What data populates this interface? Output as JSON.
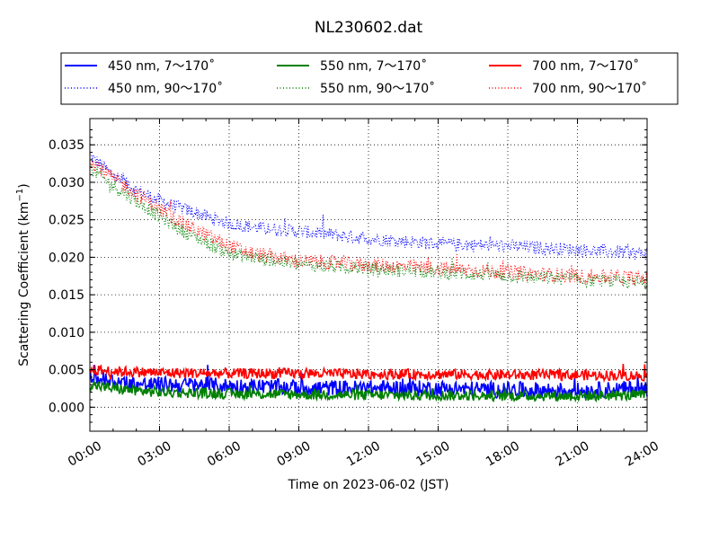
{
  "chart_data": {
    "type": "line",
    "title": "NL230602.dat",
    "xlabel": "Time on 2023-06-02 (JST)",
    "ylabel_main": "Scattering Coefficient (km",
    "ylabel_exp": "−1",
    "ylabel_close": ")",
    "x_tick_labels": [
      "00:00",
      "03:00",
      "06:00",
      "09:00",
      "12:00",
      "15:00",
      "18:00",
      "21:00",
      "24:00"
    ],
    "x_ticks_hours": [
      0,
      3,
      6,
      9,
      12,
      15,
      18,
      21,
      24
    ],
    "xlim_hours": [
      0,
      24
    ],
    "y_ticks": [
      0.0,
      0.005,
      0.01,
      0.015,
      0.02,
      0.025,
      0.03,
      0.035
    ],
    "y_tick_labels": [
      "0.000",
      "0.005",
      "0.010",
      "0.015",
      "0.020",
      "0.025",
      "0.030",
      "0.035"
    ],
    "ylim": [
      -0.0032,
      0.0385
    ],
    "grid": true,
    "legend_position": "top, above plot, 3 columns",
    "series": [
      {
        "name": "450 nm, 7～170˚",
        "color": "#0000ff",
        "style": "solid",
        "hours": [
          0,
          1,
          2,
          3,
          4,
          6,
          9,
          12,
          15,
          18,
          21,
          24
        ],
        "values": [
          0.004,
          0.0035,
          0.003,
          0.003,
          0.003,
          0.0028,
          0.0026,
          0.0025,
          0.0025,
          0.0023,
          0.0022,
          0.0025
        ]
      },
      {
        "name": "450 nm, 90～170˚",
        "color": "#0000ff",
        "style": "dotted",
        "hours": [
          0,
          1,
          2,
          3,
          4,
          5,
          6,
          7,
          9,
          12,
          15,
          18,
          21,
          24
        ],
        "values": [
          0.0335,
          0.031,
          0.029,
          0.0275,
          0.0265,
          0.0255,
          0.0245,
          0.024,
          0.0235,
          0.0225,
          0.0218,
          0.0215,
          0.021,
          0.0205
        ]
      },
      {
        "name": "550 nm, 7～170˚",
        "color": "#008000",
        "style": "solid",
        "hours": [
          0,
          1,
          2,
          3,
          6,
          9,
          12,
          15,
          18,
          21,
          24
        ],
        "values": [
          0.003,
          0.0025,
          0.0022,
          0.002,
          0.0018,
          0.0017,
          0.0016,
          0.0016,
          0.0015,
          0.0015,
          0.0016
        ]
      },
      {
        "name": "550 nm, 90～170˚",
        "color": "#008000",
        "style": "dotted",
        "hours": [
          0,
          1,
          2,
          3,
          4,
          5,
          6,
          7,
          9,
          12,
          15,
          18,
          21,
          24
        ],
        "values": [
          0.032,
          0.0295,
          0.0275,
          0.0255,
          0.0235,
          0.022,
          0.0205,
          0.02,
          0.019,
          0.0185,
          0.018,
          0.0175,
          0.017,
          0.0165
        ]
      },
      {
        "name": "700 nm, 7～170˚",
        "color": "#ff0000",
        "style": "solid",
        "hours": [
          0,
          1,
          2,
          3,
          6,
          9,
          12,
          15,
          18,
          21,
          24
        ],
        "values": [
          0.005,
          0.0048,
          0.0047,
          0.0046,
          0.0045,
          0.0045,
          0.0044,
          0.0044,
          0.0043,
          0.0043,
          0.0042
        ]
      },
      {
        "name": "700 nm, 90～170˚",
        "color": "#ff0000",
        "style": "dotted",
        "hours": [
          0,
          1,
          2,
          3,
          4,
          5,
          6,
          7,
          9,
          12,
          15,
          18,
          21,
          24
        ],
        "values": [
          0.033,
          0.0305,
          0.0285,
          0.0265,
          0.0245,
          0.023,
          0.0215,
          0.0205,
          0.0195,
          0.019,
          0.0185,
          0.018,
          0.0175,
          0.0172
        ]
      }
    ]
  }
}
